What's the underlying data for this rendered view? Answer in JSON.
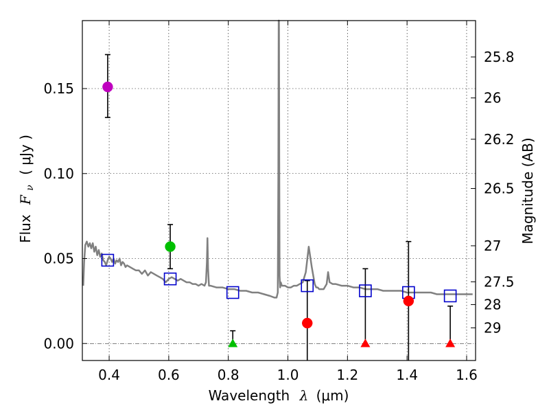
{
  "chart_data": {
    "type": "scatter",
    "xlabel_prefix": "Wavelength",
    "xlabel_symbol": "λ",
    "xlabel_unit": "(μm)",
    "ylabel_prefix": "Flux",
    "ylabel_symbol": "F",
    "ylabel_subscript": "ν",
    "ylabel_unit": "( μJy )",
    "y2label": "Magnitude (AB)",
    "xlim": [
      0.31,
      1.63
    ],
    "ylim": [
      -0.01,
      0.19
    ],
    "xticks": [
      0.4,
      0.6,
      0.8,
      1.0,
      1.2,
      1.4,
      1.6
    ],
    "xtick_labels": [
      "0.4",
      "0.6",
      "0.8",
      "1.0",
      "1.2",
      "1.4",
      "1.6"
    ],
    "yticks": [
      0.0,
      0.05,
      0.1,
      0.15
    ],
    "ytick_labels": [
      "0.00",
      "0.05",
      "0.10",
      "0.15"
    ],
    "mag_ticks": [
      {
        "label": "25.8",
        "flux": 0.1686
      },
      {
        "label": "26",
        "flux": 0.1445
      },
      {
        "label": "26.2",
        "flux": 0.1202
      },
      {
        "label": "26.5",
        "flux": 0.0912
      },
      {
        "label": "27",
        "flux": 0.0575
      },
      {
        "label": "27.5",
        "flux": 0.0363
      },
      {
        "label": "28",
        "flux": 0.0229
      },
      {
        "label": "29",
        "flux": 0.0092
      }
    ],
    "colors": {
      "magenta": "#bf00bf",
      "green": "#00bf00",
      "red": "#ff0000",
      "model_box": "#0000cc",
      "sed": "#808080"
    },
    "observations": [
      {
        "name": "obs-1",
        "x": 0.395,
        "y": 0.151,
        "err_lo": 0.133,
        "err_hi": 0.17,
        "marker": "circle",
        "color": "#bf00bf"
      },
      {
        "name": "obs-2",
        "x": 0.605,
        "y": 0.057,
        "err_lo": 0.044,
        "err_hi": 0.07,
        "marker": "circle",
        "color": "#00bf00"
      },
      {
        "name": "obs-3",
        "x": 0.815,
        "y": 0.0,
        "err_lo": 0.0,
        "err_hi": 0.0075,
        "marker": "triangle",
        "color": "#00bf00"
      },
      {
        "name": "obs-4",
        "x": 1.065,
        "y": 0.012,
        "err_lo": -0.01,
        "err_hi": 0.037,
        "marker": "circle",
        "color": "#ff0000"
      },
      {
        "name": "obs-5",
        "x": 1.26,
        "y": 0.0,
        "err_lo": 0.0,
        "err_hi": 0.044,
        "marker": "triangle",
        "color": "#ff0000"
      },
      {
        "name": "obs-6",
        "x": 1.405,
        "y": 0.025,
        "err_lo": -0.01,
        "err_hi": 0.06,
        "marker": "circle",
        "color": "#ff0000"
      },
      {
        "name": "obs-7",
        "x": 1.545,
        "y": 0.0,
        "err_lo": 0.0,
        "err_hi": 0.022,
        "marker": "triangle",
        "color": "#ff0000"
      }
    ],
    "model_photometry": {
      "x": [
        0.395,
        0.605,
        0.815,
        1.065,
        1.26,
        1.405,
        1.545
      ],
      "y": [
        0.049,
        0.038,
        0.03,
        0.034,
        0.031,
        0.03,
        0.028
      ]
    },
    "sed_spectrum": {
      "x": [
        0.313,
        0.316,
        0.32,
        0.325,
        0.33,
        0.335,
        0.34,
        0.345,
        0.35,
        0.355,
        0.36,
        0.365,
        0.37,
        0.375,
        0.38,
        0.385,
        0.39,
        0.395,
        0.4,
        0.405,
        0.41,
        0.415,
        0.42,
        0.425,
        0.43,
        0.435,
        0.44,
        0.445,
        0.45,
        0.455,
        0.46,
        0.47,
        0.48,
        0.49,
        0.5,
        0.51,
        0.52,
        0.53,
        0.54,
        0.55,
        0.56,
        0.57,
        0.58,
        0.59,
        0.6,
        0.61,
        0.62,
        0.63,
        0.64,
        0.65,
        0.66,
        0.67,
        0.68,
        0.69,
        0.7,
        0.71,
        0.72,
        0.725,
        0.728,
        0.73,
        0.732,
        0.735,
        0.74,
        0.76,
        0.78,
        0.8,
        0.82,
        0.84,
        0.86,
        0.88,
        0.9,
        0.92,
        0.94,
        0.955,
        0.962,
        0.966,
        0.968,
        0.969,
        0.97,
        0.971,
        0.972,
        0.974,
        0.976,
        0.98,
        0.99,
        1.0,
        1.01,
        1.02,
        1.03,
        1.04,
        1.05,
        1.06,
        1.07,
        1.08,
        1.09,
        1.095,
        1.1,
        1.105,
        1.11,
        1.12,
        1.13,
        1.135,
        1.14,
        1.15,
        1.16,
        1.18,
        1.2,
        1.22,
        1.24,
        1.26,
        1.28,
        1.3,
        1.32,
        1.34,
        1.36,
        1.38,
        1.4,
        1.42,
        1.44,
        1.46,
        1.48,
        1.5,
        1.52,
        1.54,
        1.56,
        1.58,
        1.6,
        1.62
      ],
      "y": [
        0.034,
        0.048,
        0.058,
        0.06,
        0.057,
        0.059,
        0.056,
        0.059,
        0.054,
        0.057,
        0.052,
        0.055,
        0.051,
        0.053,
        0.049,
        0.048,
        0.046,
        0.049,
        0.051,
        0.05,
        0.048,
        0.05,
        0.047,
        0.049,
        0.048,
        0.05,
        0.046,
        0.048,
        0.047,
        0.045,
        0.046,
        0.045,
        0.044,
        0.043,
        0.043,
        0.041,
        0.043,
        0.04,
        0.042,
        0.041,
        0.04,
        0.039,
        0.038,
        0.036,
        0.038,
        0.039,
        0.038,
        0.037,
        0.038,
        0.037,
        0.036,
        0.036,
        0.035,
        0.035,
        0.034,
        0.035,
        0.034,
        0.036,
        0.048,
        0.062,
        0.044,
        0.034,
        0.034,
        0.033,
        0.033,
        0.032,
        0.032,
        0.031,
        0.031,
        0.03,
        0.03,
        0.029,
        0.028,
        0.027,
        0.027,
        0.03,
        0.1,
        0.19,
        0.19,
        0.11,
        0.04,
        0.033,
        0.036,
        0.034,
        0.034,
        0.033,
        0.033,
        0.034,
        0.034,
        0.035,
        0.036,
        0.042,
        0.057,
        0.045,
        0.035,
        0.033,
        0.033,
        0.032,
        0.032,
        0.032,
        0.035,
        0.042,
        0.036,
        0.035,
        0.035,
        0.034,
        0.034,
        0.033,
        0.033,
        0.032,
        0.032,
        0.032,
        0.031,
        0.031,
        0.031,
        0.031,
        0.03,
        0.03,
        0.03,
        0.03,
        0.03,
        0.029,
        0.029,
        0.029,
        0.029,
        0.029,
        0.029,
        0.029
      ]
    }
  }
}
